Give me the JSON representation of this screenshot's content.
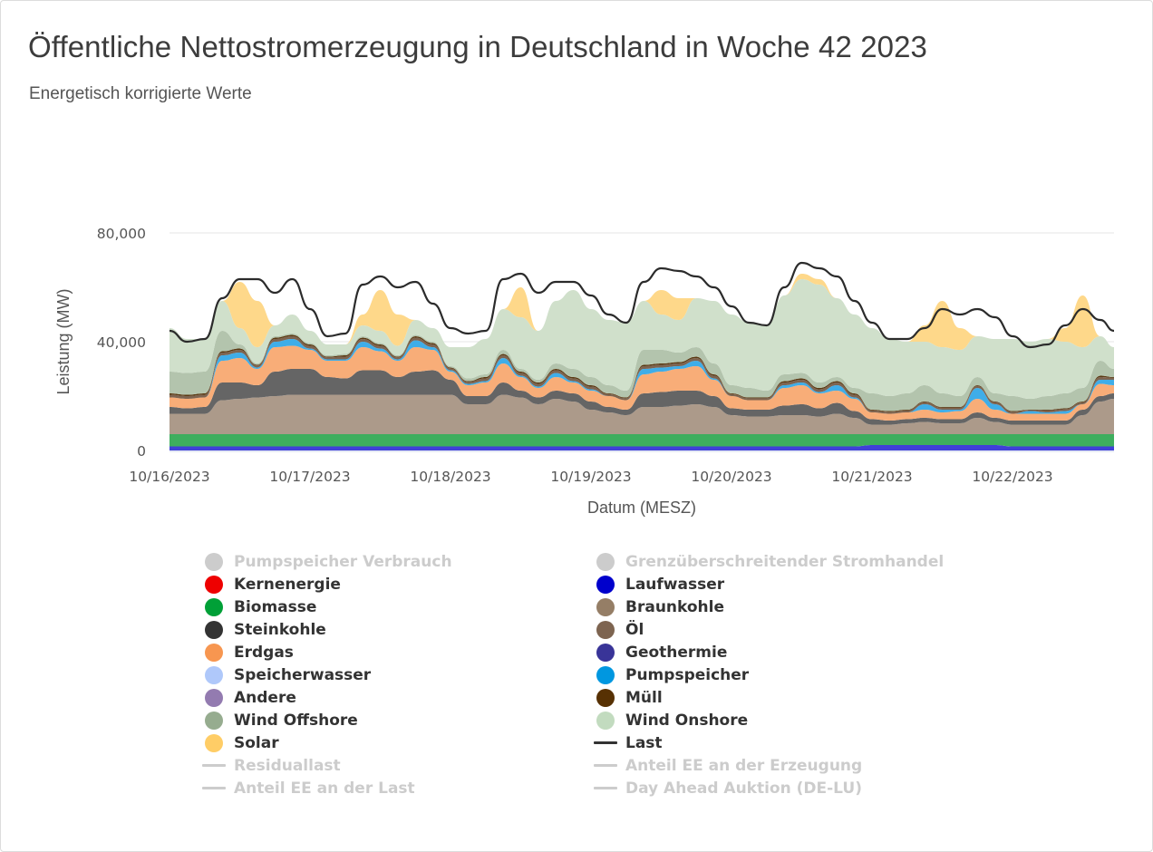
{
  "header": {
    "title": "Öffentliche Nettostromerzeugung in Deutschland in Woche 42 2023",
    "subtitle": "Energetisch korrigierte Werte"
  },
  "chart_data": {
    "type": "area",
    "stacked": true,
    "title": "Öffentliche Nettostromerzeugung in Deutschland in Woche 42 2023",
    "subtitle": "Energetisch korrigierte Werte",
    "xlabel": "Datum (MESZ)",
    "ylabel": "Leistung (MW)",
    "ylim": [
      0,
      80000
    ],
    "yticks": [
      0,
      40000,
      80000
    ],
    "ytick_labels": [
      "0",
      "40,000",
      "80,000"
    ],
    "xtick_labels": [
      "10/16/2023",
      "10/17/2023",
      "10/18/2023",
      "10/19/2023",
      "10/20/2023",
      "10/21/2023",
      "10/22/2023"
    ],
    "x_unit": "hours since 10/16/2023 00:00",
    "x_step_hours": 3,
    "x_range_hours": [
      0,
      162
    ],
    "grid": "horizontal",
    "legend_position": "bottom",
    "series": [
      {
        "name": "Laufwasser",
        "color": "#4040d8",
        "values": [
          1500,
          1500,
          1500,
          1500,
          1500,
          1500,
          1500,
          1500,
          1500,
          1500,
          1500,
          1500,
          1500,
          1500,
          1500,
          1500,
          1500,
          1500,
          1500,
          1500,
          1500,
          1500,
          1500,
          1500,
          1500,
          1500,
          1500,
          1500,
          1500,
          1500,
          1500,
          1500,
          1500,
          1500,
          1500,
          1500,
          1500,
          1500,
          1500,
          1500,
          2000,
          2000,
          2000,
          2000,
          2000,
          2000,
          2000,
          2000,
          1500,
          1500,
          1500,
          1500,
          1500,
          1500,
          1500
        ]
      },
      {
        "name": "Biomasse",
        "color": "#3eae5e",
        "values": [
          4500,
          4500,
          4500,
          4500,
          4500,
          4500,
          4500,
          4500,
          4500,
          4500,
          4500,
          4500,
          4500,
          4500,
          4500,
          4500,
          4500,
          4500,
          4500,
          4500,
          4500,
          4500,
          4500,
          4500,
          4500,
          4500,
          4500,
          4500,
          4500,
          4500,
          4500,
          4500,
          4500,
          4500,
          4500,
          4500,
          4500,
          4500,
          4500,
          4500,
          4000,
          4000,
          4000,
          4000,
          4000,
          4000,
          4000,
          4000,
          4500,
          4500,
          4500,
          4500,
          4500,
          4500,
          4500
        ]
      },
      {
        "name": "Braunkohle",
        "color": "#ac9a8a",
        "values": [
          7500,
          7500,
          7500,
          12500,
          13000,
          13500,
          14000,
          14500,
          14500,
          14500,
          14500,
          14500,
          14500,
          14500,
          14500,
          14500,
          14500,
          11000,
          11000,
          14500,
          13500,
          11000,
          13000,
          12000,
          9000,
          8000,
          7000,
          10000,
          10000,
          10500,
          11000,
          10000,
          7000,
          6500,
          6500,
          7000,
          7000,
          6500,
          7500,
          6000,
          3500,
          3500,
          4000,
          4500,
          4000,
          4000,
          6000,
          4500,
          3500,
          3500,
          3500,
          3500,
          7000,
          12000,
          13000
        ]
      },
      {
        "name": "Steinkohle",
        "color": "#656565",
        "values": [
          2500,
          2000,
          2500,
          6500,
          6000,
          4500,
          9000,
          9500,
          9500,
          6500,
          6000,
          9000,
          9000,
          6500,
          8500,
          9000,
          5500,
          3000,
          3000,
          4500,
          2500,
          2500,
          3000,
          3000,
          3000,
          2000,
          2000,
          5000,
          5500,
          5500,
          5000,
          4000,
          2500,
          2500,
          2500,
          3500,
          4000,
          3000,
          4000,
          2500,
          2000,
          1500,
          1500,
          1500,
          1500,
          1500,
          2000,
          1500,
          1500,
          1500,
          1500,
          1500,
          2000,
          2000,
          2000
        ]
      },
      {
        "name": "Erdgas",
        "color": "#f8ad78",
        "values": [
          3500,
          3500,
          3500,
          8000,
          9000,
          6000,
          9000,
          8500,
          7000,
          6000,
          6500,
          8500,
          7000,
          6000,
          9000,
          7500,
          3000,
          4000,
          5000,
          7000,
          5000,
          3500,
          5000,
          4000,
          4000,
          4000,
          3500,
          7000,
          7500,
          8000,
          9000,
          6000,
          4500,
          3500,
          3500,
          6500,
          7000,
          5500,
          4500,
          4500,
          2500,
          2500,
          2500,
          3000,
          2500,
          3000,
          5000,
          3000,
          2500,
          2500,
          2500,
          2500,
          2000,
          4500,
          3000
        ]
      },
      {
        "name": "Pumpspeicher",
        "color": "#3fade8",
        "values": [
          0,
          0,
          0,
          2000,
          2000,
          500,
          2000,
          2500,
          500,
          500,
          500,
          2000,
          1000,
          500,
          2500,
          1000,
          500,
          500,
          500,
          2000,
          500,
          500,
          1500,
          500,
          500,
          0,
          0,
          2000,
          1500,
          1000,
          2000,
          500,
          0,
          0,
          0,
          1000,
          1000,
          500,
          2000,
          500,
          0,
          0,
          0,
          2000,
          1000,
          500,
          4000,
          2000,
          0,
          1000,
          500,
          1000,
          0,
          1500,
          2000
        ]
      },
      {
        "name": "Öl",
        "color": "#7d6450",
        "values": [
          1000,
          1000,
          1000,
          1000,
          1000,
          700,
          1000,
          1000,
          1000,
          700,
          1000,
          1000,
          1000,
          700,
          1000,
          1000,
          700,
          700,
          1000,
          1000,
          1000,
          1000,
          1000,
          1000,
          1000,
          700,
          700,
          1000,
          1000,
          1000,
          1000,
          1000,
          700,
          700,
          700,
          1000,
          1000,
          1000,
          1000,
          1000,
          700,
          700,
          700,
          700,
          700,
          700,
          700,
          700,
          700,
          300,
          700,
          700,
          700,
          1000,
          700
        ]
      },
      {
        "name": "Müll",
        "color": "#5a3a14",
        "values": [
          500,
          500,
          500,
          500,
          500,
          300,
          500,
          500,
          500,
          300,
          500,
          500,
          500,
          300,
          500,
          500,
          300,
          300,
          500,
          500,
          500,
          500,
          500,
          500,
          500,
          300,
          300,
          500,
          500,
          500,
          500,
          500,
          300,
          300,
          300,
          500,
          500,
          500,
          500,
          500,
          300,
          300,
          300,
          300,
          300,
          300,
          300,
          300,
          300,
          200,
          300,
          300,
          300,
          500,
          300
        ]
      },
      {
        "name": "Wind Offshore",
        "color": "#b3c4ad",
        "values": [
          8000,
          8000,
          8000,
          7500,
          1500,
          500,
          500,
          500,
          500,
          500,
          500,
          500,
          500,
          500,
          500,
          500,
          500,
          1000,
          1000,
          1500,
          1000,
          1000,
          2000,
          3000,
          3000,
          3000,
          2500,
          5500,
          5000,
          3500,
          3500,
          4000,
          3000,
          3500,
          2500,
          2500,
          2000,
          2000,
          1500,
          2000,
          6000,
          5500,
          6000,
          6000,
          5000,
          4000,
          3000,
          3000,
          5500,
          4000,
          5000,
          5500,
          5000,
          5500,
          3000
        ]
      },
      {
        "name": "Wind Onshore",
        "color": "#d0e0cb",
        "values": [
          16000,
          12500,
          12000,
          11000,
          6000,
          6000,
          4000,
          7000,
          4500,
          4000,
          3500,
          4000,
          4500,
          3500,
          5500,
          5000,
          7000,
          11500,
          13000,
          15000,
          19000,
          18000,
          23000,
          29000,
          25000,
          24000,
          25000,
          18000,
          13000,
          12000,
          18000,
          23000,
          26000,
          24000,
          24000,
          29000,
          34500,
          36000,
          29000,
          27000,
          24000,
          21000,
          19000,
          16000,
          17000,
          17000,
          15000,
          20000,
          21000,
          21000,
          21000,
          19000,
          15000,
          9000,
          8000
        ]
      },
      {
        "name": "Solar",
        "color": "#fed88a",
        "values": [
          0,
          0,
          0,
          0,
          17000,
          17000,
          0,
          0,
          0,
          0,
          0,
          4000,
          15000,
          11500,
          0,
          0,
          0,
          0,
          0,
          0,
          11000,
          0,
          0,
          0,
          0,
          0,
          0,
          0,
          9000,
          8000,
          0,
          0,
          0,
          0,
          0,
          0,
          2000,
          2000,
          0,
          0,
          0,
          0,
          0,
          6000,
          17000,
          8000,
          0,
          0,
          0,
          0,
          0,
          5000,
          19000,
          0,
          0
        ]
      },
      {
        "name": "Last",
        "color": "#2b2b2b",
        "type": "line",
        "values": [
          44000,
          40000,
          41000,
          56000,
          63000,
          63000,
          58000,
          63000,
          52000,
          42000,
          43000,
          61000,
          64000,
          60000,
          62000,
          54000,
          45000,
          43000,
          44000,
          63000,
          65000,
          58000,
          62000,
          62000,
          57000,
          50000,
          47000,
          62000,
          67000,
          66000,
          64000,
          60000,
          53000,
          47000,
          46000,
          60000,
          69000,
          67000,
          64000,
          55000,
          47000,
          41000,
          41000,
          45000,
          52000,
          50000,
          52000,
          49000,
          42000,
          38000,
          39000,
          46000,
          52000,
          48000,
          44000
        ]
      }
    ]
  },
  "legend": {
    "col1": [
      {
        "label": "Pumpspeicher Verbrauch",
        "color": "#cccccc",
        "marker": "dot",
        "hidden": true
      },
      {
        "label": "Kernenergie",
        "color": "#ee0000",
        "marker": "dot",
        "hidden": false
      },
      {
        "label": "Biomasse",
        "color": "#00a037",
        "marker": "dot",
        "hidden": false
      },
      {
        "label": "Steinkohle",
        "color": "#333333",
        "marker": "dot",
        "hidden": false
      },
      {
        "label": "Erdgas",
        "color": "#f79650",
        "marker": "dot",
        "hidden": false
      },
      {
        "label": "Speicherwasser",
        "color": "#afc8fa",
        "marker": "dot",
        "hidden": false
      },
      {
        "label": "Andere",
        "color": "#937bb0",
        "marker": "dot",
        "hidden": false
      },
      {
        "label": "Wind Offshore",
        "color": "#96ac8f",
        "marker": "dot",
        "hidden": false
      },
      {
        "label": "Solar",
        "color": "#ffcd66",
        "marker": "dot",
        "hidden": false
      },
      {
        "label": "Residuallast",
        "color": "#cccccc",
        "marker": "line",
        "hidden": true
      },
      {
        "label": "Anteil EE an der Last",
        "color": "#cccccc",
        "marker": "line",
        "hidden": true
      }
    ],
    "col2": [
      {
        "label": "Grenzüberschreitender Stromhandel",
        "color": "#cccccc",
        "marker": "dot",
        "hidden": true
      },
      {
        "label": "Laufwasser",
        "color": "#0000cc",
        "marker": "dot",
        "hidden": false
      },
      {
        "label": "Braunkohle",
        "color": "#957e66",
        "marker": "dot",
        "hidden": false
      },
      {
        "label": "Öl",
        "color": "#7d6450",
        "marker": "dot",
        "hidden": false
      },
      {
        "label": "Geothermie",
        "color": "#393498",
        "marker": "dot",
        "hidden": false
      },
      {
        "label": "Pumpspeicher",
        "color": "#0097e0",
        "marker": "dot",
        "hidden": false
      },
      {
        "label": "Müll",
        "color": "#573103",
        "marker": "dot",
        "hidden": false
      },
      {
        "label": "Wind Onshore",
        "color": "#c2dbbf",
        "marker": "dot",
        "hidden": false
      },
      {
        "label": "Last",
        "color": "#333333",
        "marker": "line",
        "hidden": false
      },
      {
        "label": "Anteil EE an der Erzeugung",
        "color": "#cccccc",
        "marker": "line",
        "hidden": true
      },
      {
        "label": "Day Ahead Auktion (DE-LU)",
        "color": "#cccccc",
        "marker": "line",
        "hidden": true
      }
    ]
  }
}
